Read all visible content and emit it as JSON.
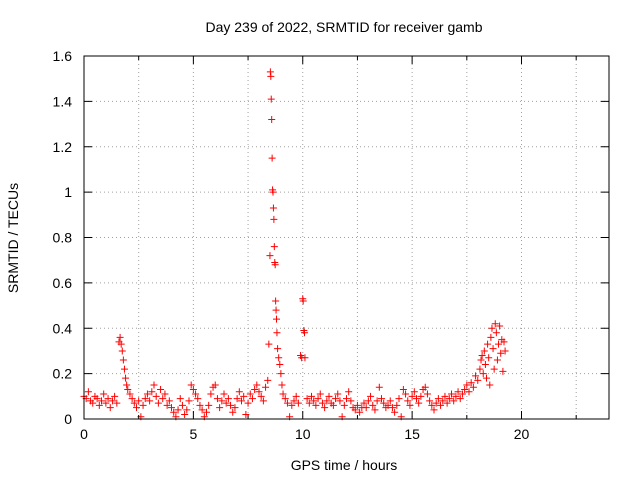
{
  "chart_data": {
    "type": "scatter",
    "title": "Day 239 of 2022, SRMTID for receiver gamb",
    "xlabel": "GPS time / hours",
    "ylabel": "SRMTID / TECUs",
    "xlim": [
      0,
      24
    ],
    "ylim": [
      0,
      1.6
    ],
    "grid": true,
    "marker": "+",
    "color": "#ff0000",
    "x_ticks": [
      0,
      5,
      10,
      15,
      20
    ],
    "x_tick_labels": [
      "0",
      "5",
      "10",
      "15",
      "20"
    ],
    "y_ticks": [
      0,
      0.2,
      0.4,
      0.6,
      0.8,
      1.0,
      1.2,
      1.4,
      1.6
    ],
    "y_tick_labels": [
      "0",
      "0.2",
      "0.4",
      "0.6",
      "0.8",
      "1",
      "1.2",
      "1.4",
      "1.6"
    ],
    "series": [
      {
        "name": "SRMTID",
        "points": [
          [
            0.0,
            0.1
          ],
          [
            0.1,
            0.09
          ],
          [
            0.2,
            0.12
          ],
          [
            0.3,
            0.08
          ],
          [
            0.4,
            0.07
          ],
          [
            0.5,
            0.1
          ],
          [
            0.6,
            0.09
          ],
          [
            0.7,
            0.06
          ],
          [
            0.8,
            0.08
          ],
          [
            0.9,
            0.11
          ],
          [
            1.0,
            0.07
          ],
          [
            1.1,
            0.09
          ],
          [
            1.2,
            0.05
          ],
          [
            1.3,
            0.08
          ],
          [
            1.4,
            0.1
          ],
          [
            1.5,
            0.07
          ],
          [
            1.6,
            0.34
          ],
          [
            1.65,
            0.36
          ],
          [
            1.7,
            0.33
          ],
          [
            1.75,
            0.3
          ],
          [
            1.8,
            0.26
          ],
          [
            1.85,
            0.22
          ],
          [
            1.9,
            0.18
          ],
          [
            1.95,
            0.15
          ],
          [
            2.0,
            0.13
          ],
          [
            2.1,
            0.11
          ],
          [
            2.2,
            0.09
          ],
          [
            2.3,
            0.07
          ],
          [
            2.4,
            0.05
          ],
          [
            2.5,
            0.08
          ],
          [
            2.6,
            0.01
          ],
          [
            2.7,
            0.06
          ],
          [
            2.8,
            0.09
          ],
          [
            2.9,
            0.11
          ],
          [
            3.0,
            0.08
          ],
          [
            3.1,
            0.12
          ],
          [
            3.2,
            0.15
          ],
          [
            3.3,
            0.1
          ],
          [
            3.4,
            0.07
          ],
          [
            3.5,
            0.13
          ],
          [
            3.6,
            0.09
          ],
          [
            3.7,
            0.11
          ],
          [
            3.8,
            0.06
          ],
          [
            3.9,
            0.08
          ],
          [
            4.0,
            0.05
          ],
          [
            4.1,
            0.03
          ],
          [
            4.2,
            0.01
          ],
          [
            4.3,
            0.04
          ],
          [
            4.4,
            0.09
          ],
          [
            4.5,
            0.06
          ],
          [
            4.6,
            0.02
          ],
          [
            4.7,
            0.04
          ],
          [
            4.8,
            0.08
          ],
          [
            4.9,
            0.15
          ],
          [
            5.0,
            0.13
          ],
          [
            5.1,
            0.11
          ],
          [
            5.2,
            0.09
          ],
          [
            5.3,
            0.06
          ],
          [
            5.4,
            0.04
          ],
          [
            5.5,
            0.01
          ],
          [
            5.6,
            0.03
          ],
          [
            5.7,
            0.06
          ],
          [
            5.8,
            0.11
          ],
          [
            5.9,
            0.14
          ],
          [
            6.0,
            0.15
          ],
          [
            6.1,
            0.09
          ],
          [
            6.2,
            0.05
          ],
          [
            6.3,
            0.08
          ],
          [
            6.4,
            0.11
          ],
          [
            6.5,
            0.07
          ],
          [
            6.6,
            0.09
          ],
          [
            6.7,
            0.06
          ],
          [
            6.8,
            0.03
          ],
          [
            6.9,
            0.05
          ],
          [
            7.0,
            0.09
          ],
          [
            7.1,
            0.12
          ],
          [
            7.2,
            0.08
          ],
          [
            7.3,
            0.1
          ],
          [
            7.4,
            0.02
          ],
          [
            7.5,
            0.07
          ],
          [
            7.6,
            0.11
          ],
          [
            7.7,
            0.09
          ],
          [
            7.8,
            0.13
          ],
          [
            7.9,
            0.15
          ],
          [
            8.0,
            0.12
          ],
          [
            8.1,
            0.1
          ],
          [
            8.2,
            0.08
          ],
          [
            8.3,
            0.14
          ],
          [
            8.4,
            0.17
          ],
          [
            8.45,
            0.33
          ],
          [
            8.5,
            0.72
          ],
          [
            8.52,
            1.53
          ],
          [
            8.54,
            1.51
          ],
          [
            8.56,
            1.41
          ],
          [
            8.58,
            1.32
          ],
          [
            8.6,
            1.15
          ],
          [
            8.62,
            1.01
          ],
          [
            8.64,
            1.0
          ],
          [
            8.66,
            0.93
          ],
          [
            8.68,
            0.88
          ],
          [
            8.7,
            0.76
          ],
          [
            8.72,
            0.69
          ],
          [
            8.74,
            0.68
          ],
          [
            8.76,
            0.52
          ],
          [
            8.78,
            0.48
          ],
          [
            8.8,
            0.44
          ],
          [
            8.82,
            0.38
          ],
          [
            8.85,
            0.31
          ],
          [
            8.9,
            0.27
          ],
          [
            8.95,
            0.24
          ],
          [
            9.0,
            0.2
          ],
          [
            9.05,
            0.15
          ],
          [
            9.1,
            0.11
          ],
          [
            9.2,
            0.09
          ],
          [
            9.3,
            0.07
          ],
          [
            9.4,
            0.01
          ],
          [
            9.5,
            0.06
          ],
          [
            9.6,
            0.08
          ],
          [
            9.7,
            0.1
          ],
          [
            9.8,
            0.07
          ],
          [
            9.9,
            0.28
          ],
          [
            9.95,
            0.27
          ],
          [
            10.0,
            0.53
          ],
          [
            10.02,
            0.52
          ],
          [
            10.05,
            0.39
          ],
          [
            10.08,
            0.38
          ],
          [
            10.1,
            0.27
          ],
          [
            10.2,
            0.09
          ],
          [
            10.3,
            0.07
          ],
          [
            10.4,
            0.1
          ],
          [
            10.5,
            0.08
          ],
          [
            10.6,
            0.06
          ],
          [
            10.7,
            0.09
          ],
          [
            10.8,
            0.11
          ],
          [
            10.9,
            0.07
          ],
          [
            11.0,
            0.05
          ],
          [
            11.1,
            0.08
          ],
          [
            11.2,
            0.1
          ],
          [
            11.3,
            0.07
          ],
          [
            11.4,
            0.06
          ],
          [
            11.5,
            0.09
          ],
          [
            11.6,
            0.11
          ],
          [
            11.7,
            0.08
          ],
          [
            11.8,
            0.01
          ],
          [
            11.9,
            0.06
          ],
          [
            12.0,
            0.09
          ],
          [
            12.1,
            0.12
          ],
          [
            12.2,
            0.08
          ],
          [
            12.3,
            0.05
          ],
          [
            12.4,
            0.04
          ],
          [
            12.5,
            0.06
          ],
          [
            12.6,
            0.03
          ],
          [
            12.7,
            0.05
          ],
          [
            12.8,
            0.07
          ],
          [
            12.9,
            0.05
          ],
          [
            13.0,
            0.08
          ],
          [
            13.1,
            0.1
          ],
          [
            13.2,
            0.06
          ],
          [
            13.3,
            0.04
          ],
          [
            13.4,
            0.08
          ],
          [
            13.5,
            0.14
          ],
          [
            13.6,
            0.09
          ],
          [
            13.7,
            0.07
          ],
          [
            13.8,
            0.05
          ],
          [
            13.9,
            0.06
          ],
          [
            14.0,
            0.08
          ],
          [
            14.1,
            0.05
          ],
          [
            14.2,
            0.03
          ],
          [
            14.3,
            0.06
          ],
          [
            14.4,
            0.09
          ],
          [
            14.5,
            0.01
          ],
          [
            14.6,
            0.13
          ],
          [
            14.7,
            0.11
          ],
          [
            14.8,
            0.08
          ],
          [
            14.9,
            0.06
          ],
          [
            15.0,
            0.1
          ],
          [
            15.1,
            0.12
          ],
          [
            15.2,
            0.09
          ],
          [
            15.3,
            0.07
          ],
          [
            15.4,
            0.1
          ],
          [
            15.5,
            0.13
          ],
          [
            15.6,
            0.14
          ],
          [
            15.7,
            0.11
          ],
          [
            15.8,
            0.08
          ],
          [
            15.9,
            0.06
          ],
          [
            16.0,
            0.04
          ],
          [
            16.1,
            0.07
          ],
          [
            16.2,
            0.09
          ],
          [
            16.3,
            0.06
          ],
          [
            16.4,
            0.08
          ],
          [
            16.5,
            0.1
          ],
          [
            16.6,
            0.07
          ],
          [
            16.7,
            0.09
          ],
          [
            16.8,
            0.11
          ],
          [
            16.9,
            0.08
          ],
          [
            17.0,
            0.1
          ],
          [
            17.1,
            0.12
          ],
          [
            17.2,
            0.09
          ],
          [
            17.3,
            0.11
          ],
          [
            17.4,
            0.13
          ],
          [
            17.5,
            0.15
          ],
          [
            17.6,
            0.12
          ],
          [
            17.7,
            0.16
          ],
          [
            17.8,
            0.14
          ],
          [
            17.9,
            0.19
          ],
          [
            18.0,
            0.17
          ],
          [
            18.1,
            0.22
          ],
          [
            18.15,
            0.26
          ],
          [
            18.2,
            0.28
          ],
          [
            18.25,
            0.2
          ],
          [
            18.3,
            0.3
          ],
          [
            18.35,
            0.24
          ],
          [
            18.4,
            0.18
          ],
          [
            18.45,
            0.33
          ],
          [
            18.5,
            0.27
          ],
          [
            18.55,
            0.15
          ],
          [
            18.6,
            0.36
          ],
          [
            18.65,
            0.4
          ],
          [
            18.7,
            0.31
          ],
          [
            18.75,
            0.22
          ],
          [
            18.8,
            0.42
          ],
          [
            18.85,
            0.38
          ],
          [
            18.9,
            0.26
          ],
          [
            18.95,
            0.33
          ],
          [
            19.0,
            0.41
          ],
          [
            19.05,
            0.29
          ],
          [
            19.1,
            0.35
          ],
          [
            19.15,
            0.21
          ],
          [
            19.2,
            0.34
          ],
          [
            19.25,
            0.3
          ]
        ]
      }
    ]
  }
}
